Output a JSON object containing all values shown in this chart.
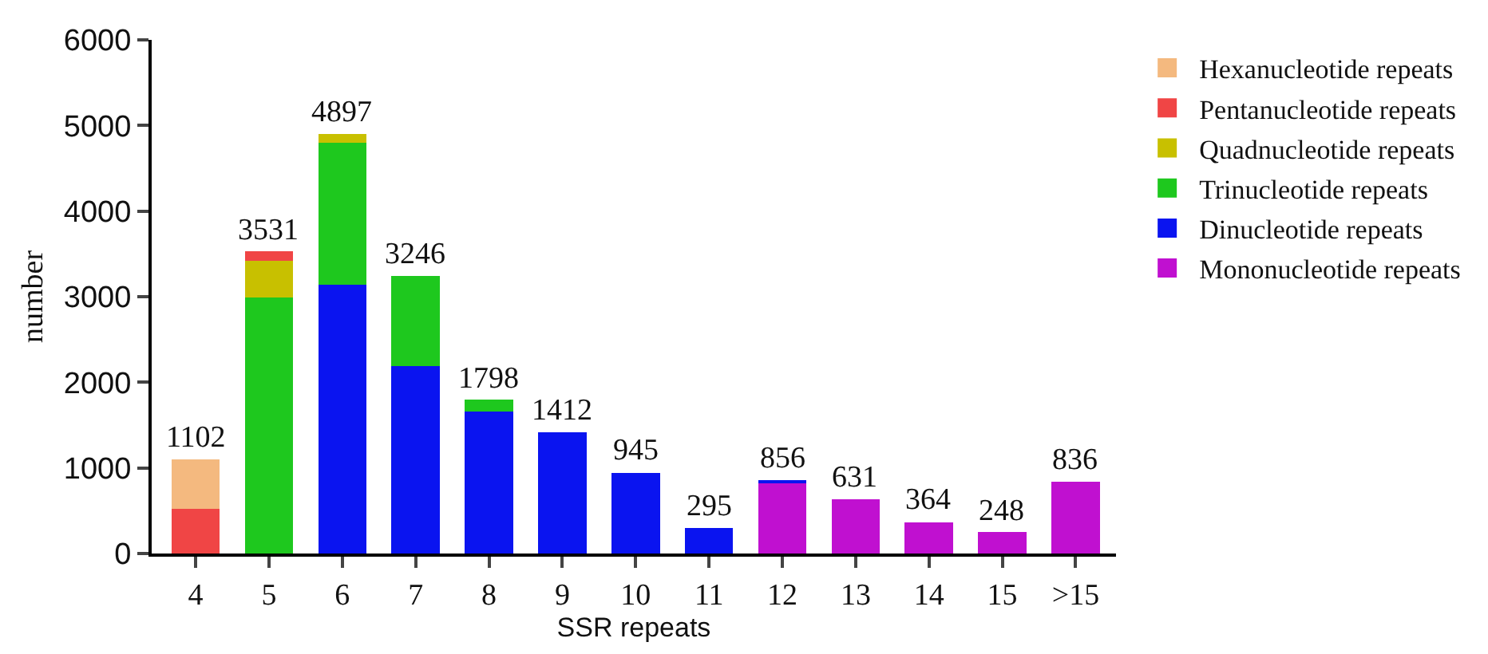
{
  "chart_data": {
    "type": "bar",
    "stacked": true,
    "xlabel": "SSR repeats",
    "ylabel": "number",
    "categories": [
      "4",
      "5",
      "6",
      "7",
      "8",
      "9",
      "10",
      "11",
      "12",
      "13",
      "14",
      "15",
      ">15"
    ],
    "series": [
      {
        "name": "Mononucleotide repeats",
        "color": "#c010d0",
        "values": [
          null,
          null,
          null,
          null,
          null,
          null,
          null,
          null,
          820,
          631,
          364,
          248,
          836
        ]
      },
      {
        "name": "Dinucleotide repeats",
        "color": "#0a14f0",
        "values": [
          null,
          null,
          3144,
          2188,
          1656,
          1412,
          945,
          295,
          36,
          null,
          null,
          null,
          null
        ]
      },
      {
        "name": "Trinucleotide repeats",
        "color": "#1ec81e",
        "values": [
          null,
          2990,
          1656,
          1058,
          142,
          null,
          null,
          null,
          null,
          null,
          null,
          null,
          null
        ]
      },
      {
        "name": "Quadnucleotide repeats",
        "color": "#c8c000",
        "values": [
          null,
          430,
          97,
          null,
          null,
          null,
          null,
          null,
          null,
          null,
          null,
          null,
          null
        ]
      },
      {
        "name": "Pentanucleotide repeats",
        "color": "#f04545",
        "values": [
          519,
          111,
          null,
          null,
          null,
          null,
          null,
          null,
          null,
          null,
          null,
          null,
          null
        ]
      },
      {
        "name": "Hexanucleotide repeats",
        "color": "#f4b97f",
        "values": [
          583,
          null,
          null,
          null,
          null,
          null,
          null,
          null,
          null,
          null,
          null,
          null,
          null
        ]
      }
    ],
    "totals": [
      "1102",
      "3531",
      "4897",
      "3246",
      "1798",
      "1412",
      "945",
      "295",
      "856",
      "631",
      "364",
      "248",
      "836"
    ],
    "ylim": [
      0,
      6000
    ],
    "yticks": [
      0,
      1000,
      2000,
      3000,
      4000,
      5000,
      6000
    ],
    "legend": "right"
  }
}
